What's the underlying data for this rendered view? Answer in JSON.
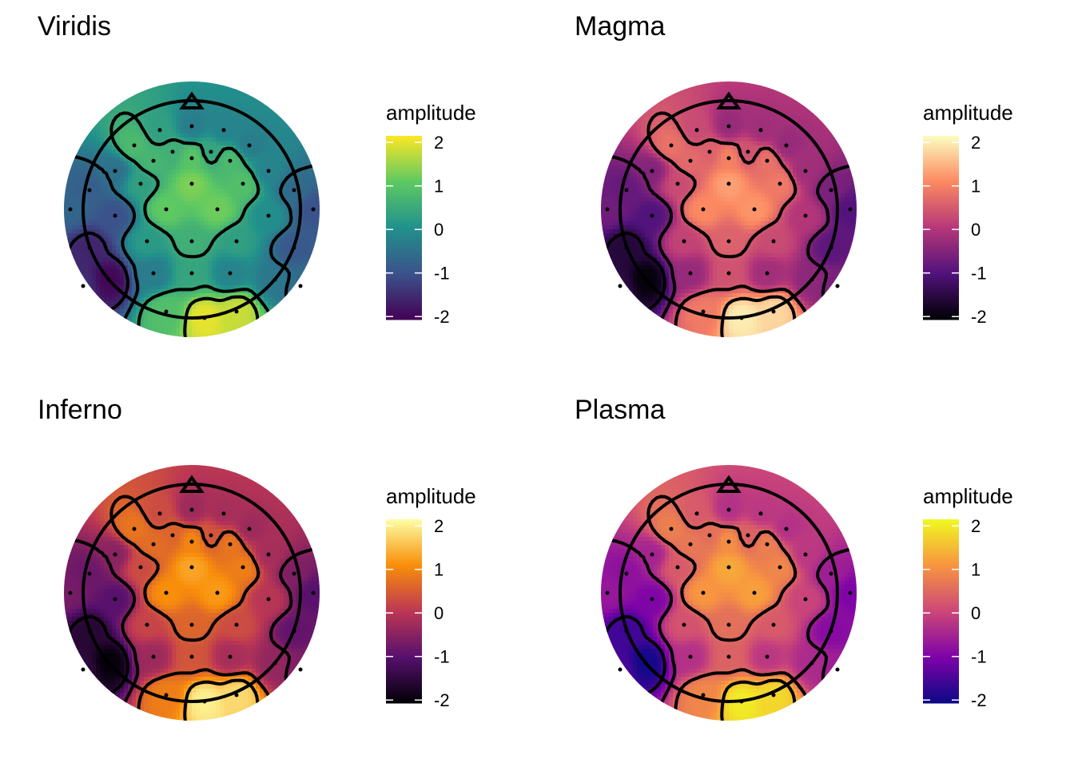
{
  "chart_data": [
    {
      "type": "topoplot",
      "title": "Viridis",
      "legend_title": "amplitude",
      "colors": [
        "#440154",
        "#3b528b",
        "#21918c",
        "#5ec962",
        "#fde725"
      ],
      "ylim": [
        -2.07,
        2.15
      ],
      "yticks": [
        -2,
        -1,
        0,
        1,
        2
      ],
      "contour_levels": [
        -1.5,
        -0.5,
        0.5,
        1.5
      ],
      "x": [
        -0.25,
        0,
        0.25,
        -0.45,
        -0.15,
        0.15,
        0.45,
        -0.6,
        -0.3,
        0,
        0.3,
        0.6,
        -0.8,
        -0.4,
        0,
        0.4,
        0.8,
        -0.95,
        -0.6,
        -0.2,
        0.2,
        0.6,
        0.95,
        -0.8,
        -0.35,
        0,
        0.35,
        0.8,
        -0.65,
        -0.3,
        0,
        0.3,
        0.65,
        -0.2,
        0.1,
        0.35,
        -0.85,
        0.85
      ],
      "y": [
        0.62,
        0.65,
        0.62,
        0.5,
        0.45,
        0.45,
        0.5,
        0.3,
        0.38,
        0.4,
        0.38,
        0.3,
        0.15,
        0.2,
        0.2,
        0.2,
        0.15,
        0,
        -0.05,
        0,
        0,
        -0.05,
        0,
        -0.3,
        -0.25,
        -0.25,
        -0.25,
        -0.3,
        -0.55,
        -0.5,
        -0.5,
        -0.5,
        -0.55,
        -0.8,
        -0.85,
        -0.8,
        -0.6,
        -0.6
      ],
      "values": [
        0.3,
        -0.3,
        -0.2,
        0.8,
        0.6,
        0.4,
        -0.3,
        -0.5,
        0.7,
        1.0,
        0.8,
        -0.2,
        -0.8,
        0.3,
        1.3,
        0.9,
        -0.6,
        -0.7,
        -1.0,
        1.1,
        1.2,
        0.0,
        -1.0,
        -1.6,
        0.2,
        0.6,
        0.3,
        -0.9,
        -2.0,
        -0.3,
        0.4,
        -0.2,
        -0.4,
        0.9,
        2.0,
        1.8,
        -1.5,
        -0.6
      ]
    },
    {
      "type": "topoplot",
      "title": "Magma",
      "legend_title": "amplitude",
      "colors": [
        "#000004",
        "#51127c",
        "#b73779",
        "#fc8961",
        "#fcfdbf"
      ],
      "ylim": [
        -2.07,
        2.15
      ],
      "yticks": [
        -2,
        -1,
        0,
        1,
        2
      ],
      "contour_levels": [
        -1.5,
        -0.5,
        0.5,
        1.5
      ],
      "x": [
        -0.25,
        0,
        0.25,
        -0.45,
        -0.15,
        0.15,
        0.45,
        -0.6,
        -0.3,
        0,
        0.3,
        0.6,
        -0.8,
        -0.4,
        0,
        0.4,
        0.8,
        -0.95,
        -0.6,
        -0.2,
        0.2,
        0.6,
        0.95,
        -0.8,
        -0.35,
        0,
        0.35,
        0.8,
        -0.65,
        -0.3,
        0,
        0.3,
        0.65,
        -0.2,
        0.1,
        0.35,
        -0.85,
        0.85
      ],
      "y": [
        0.62,
        0.65,
        0.62,
        0.5,
        0.45,
        0.45,
        0.5,
        0.3,
        0.38,
        0.4,
        0.38,
        0.3,
        0.15,
        0.2,
        0.2,
        0.2,
        0.15,
        0,
        -0.05,
        0,
        0,
        -0.05,
        0,
        -0.3,
        -0.25,
        -0.25,
        -0.25,
        -0.3,
        -0.55,
        -0.5,
        -0.5,
        -0.5,
        -0.55,
        -0.8,
        -0.85,
        -0.8,
        -0.6,
        -0.6
      ],
      "values": [
        0.3,
        -0.3,
        -0.2,
        0.8,
        0.6,
        0.4,
        -0.3,
        -0.5,
        0.7,
        1.0,
        0.8,
        -0.2,
        -0.8,
        0.3,
        1.3,
        0.9,
        -0.6,
        -0.7,
        -1.0,
        1.1,
        1.2,
        0.0,
        -1.0,
        -1.6,
        0.2,
        0.6,
        0.3,
        -0.9,
        -2.0,
        -0.3,
        0.4,
        -0.2,
        -0.4,
        0.9,
        2.0,
        1.8,
        -1.5,
        -0.6
      ]
    },
    {
      "type": "topoplot",
      "title": "Inferno",
      "legend_title": "amplitude",
      "colors": [
        "#000004",
        "#57106e",
        "#bc3754",
        "#f98e09",
        "#fcffa4"
      ],
      "ylim": [
        -2.07,
        2.15
      ],
      "yticks": [
        -2,
        -1,
        0,
        1,
        2
      ],
      "contour_levels": [
        -1.5,
        -0.5,
        0.5,
        1.5
      ],
      "x": [
        -0.25,
        0,
        0.25,
        -0.45,
        -0.15,
        0.15,
        0.45,
        -0.6,
        -0.3,
        0,
        0.3,
        0.6,
        -0.8,
        -0.4,
        0,
        0.4,
        0.8,
        -0.95,
        -0.6,
        -0.2,
        0.2,
        0.6,
        0.95,
        -0.8,
        -0.35,
        0,
        0.35,
        0.8,
        -0.65,
        -0.3,
        0,
        0.3,
        0.65,
        -0.2,
        0.1,
        0.35,
        -0.85,
        0.85
      ],
      "y": [
        0.62,
        0.65,
        0.62,
        0.5,
        0.45,
        0.45,
        0.5,
        0.3,
        0.38,
        0.4,
        0.38,
        0.3,
        0.15,
        0.2,
        0.2,
        0.2,
        0.15,
        0,
        -0.05,
        0,
        0,
        -0.05,
        0,
        -0.3,
        -0.25,
        -0.25,
        -0.25,
        -0.3,
        -0.55,
        -0.5,
        -0.5,
        -0.5,
        -0.55,
        -0.8,
        -0.85,
        -0.8,
        -0.6,
        -0.6
      ],
      "values": [
        0.3,
        -0.3,
        -0.2,
        0.8,
        0.6,
        0.4,
        -0.3,
        -0.5,
        0.7,
        1.0,
        0.8,
        -0.2,
        -0.8,
        0.3,
        1.3,
        0.9,
        -0.6,
        -0.7,
        -1.0,
        1.1,
        1.2,
        0.0,
        -1.0,
        -1.6,
        0.2,
        0.6,
        0.3,
        -0.9,
        -2.0,
        -0.3,
        0.4,
        -0.2,
        -0.4,
        0.9,
        2.0,
        1.8,
        -1.5,
        -0.6
      ]
    },
    {
      "type": "topoplot",
      "title": "Plasma",
      "legend_title": "amplitude",
      "colors": [
        "#0d0887",
        "#7e03a8",
        "#cc4778",
        "#f89540",
        "#f0f921"
      ],
      "ylim": [
        -2.07,
        2.15
      ],
      "yticks": [
        -2,
        -1,
        0,
        1,
        2
      ],
      "contour_levels": [
        -1.5,
        -0.5,
        0.5,
        1.5
      ],
      "x": [
        -0.25,
        0,
        0.25,
        -0.45,
        -0.15,
        0.15,
        0.45,
        -0.6,
        -0.3,
        0,
        0.3,
        0.6,
        -0.8,
        -0.4,
        0,
        0.4,
        0.8,
        -0.95,
        -0.6,
        -0.2,
        0.2,
        0.6,
        0.95,
        -0.8,
        -0.35,
        0,
        0.35,
        0.8,
        -0.65,
        -0.3,
        0,
        0.3,
        0.65,
        -0.2,
        0.1,
        0.35,
        -0.85,
        0.85
      ],
      "y": [
        0.62,
        0.65,
        0.62,
        0.5,
        0.45,
        0.45,
        0.5,
        0.3,
        0.38,
        0.4,
        0.38,
        0.3,
        0.15,
        0.2,
        0.2,
        0.2,
        0.15,
        0,
        -0.05,
        0,
        0,
        -0.05,
        0,
        -0.3,
        -0.25,
        -0.25,
        -0.25,
        -0.3,
        -0.55,
        -0.5,
        -0.5,
        -0.5,
        -0.55,
        -0.8,
        -0.85,
        -0.8,
        -0.6,
        -0.6
      ],
      "values": [
        0.3,
        -0.3,
        -0.2,
        0.8,
        0.6,
        0.4,
        -0.3,
        -0.5,
        0.7,
        1.0,
        0.8,
        -0.2,
        -0.8,
        0.3,
        1.3,
        0.9,
        -0.6,
        -0.7,
        -1.0,
        1.1,
        1.2,
        0.0,
        -1.0,
        -1.6,
        0.2,
        0.6,
        0.3,
        -0.9,
        -2.0,
        -0.3,
        0.4,
        -0.2,
        -0.4,
        0.9,
        2.0,
        1.8,
        -1.5,
        -0.6
      ]
    }
  ]
}
